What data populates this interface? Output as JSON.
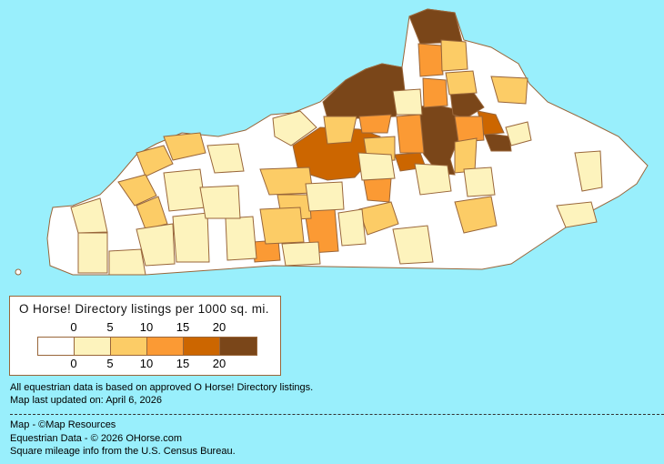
{
  "legend": {
    "title": "O Horse! Directory listings per 1000 sq. mi.",
    "ticks": [
      "0",
      "5",
      "10",
      "15",
      "20"
    ],
    "bins": [
      {
        "range": "0-5",
        "color": "#ffffff"
      },
      {
        "range": "0-5",
        "color": "#fdf3bd"
      },
      {
        "range": "5-10",
        "color": "#fccc66"
      },
      {
        "range": "10-15",
        "color": "#fb9a34"
      },
      {
        "range": "15-20",
        "color": "#cc6600"
      },
      {
        "range": "20+",
        "color": "#7a4619"
      }
    ]
  },
  "notes": {
    "line1": "All equestrian data is based on approved O Horse! Directory listings.",
    "line2": "Map last updated on: April 6, 2026"
  },
  "credits": {
    "map": "Map - ©Map Resources",
    "data": "Equestrian Data - © 2026 OHorse.com",
    "census": "Square mileage info from the U.S. Census Bureau."
  },
  "colors": {
    "background": "#99effc",
    "border": "#99663a"
  }
}
